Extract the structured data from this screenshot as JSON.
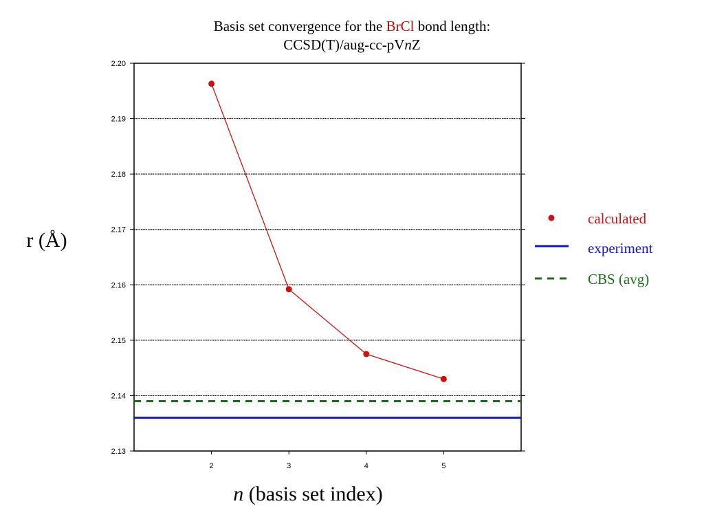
{
  "title": {
    "prefix": "Basis set convergence for the ",
    "molecule": "BrCl",
    "suffix": " bond length:",
    "line2_a": "CCSD(T)/aug-cc-pV",
    "line2_n": "n",
    "line2_b": "Z"
  },
  "axes": {
    "ylabel": "r (Å)",
    "xlabel_italic": "n",
    "xlabel_rest": " (basis set index)"
  },
  "legend": {
    "calculated": "calculated",
    "experiment": "experiment",
    "cbs": "CBS (avg)"
  },
  "colors": {
    "calculated": "#cc1111",
    "experiment": "#1515c0",
    "cbs": "#1a6e1a",
    "title_highlight": "#b01010",
    "grid": "#000000"
  },
  "chart_data": {
    "type": "line",
    "title": "Basis set convergence for the BrCl bond length: CCSD(T)/aug-cc-pVnZ",
    "xlabel": "n (basis set index)",
    "ylabel": "r (Å)",
    "xlim": [
      1,
      6
    ],
    "ylim": [
      2.13,
      2.2
    ],
    "xticks": [
      "2",
      "3",
      "4",
      "5"
    ],
    "yticks": [
      "2.13",
      "2.14",
      "2.15",
      "2.16",
      "2.17",
      "2.18",
      "2.19",
      "2.20"
    ],
    "grid": "horizontal",
    "legend_position": "right",
    "series": [
      {
        "name": "calculated",
        "type": "line",
        "x": [
          2,
          3,
          4,
          5
        ],
        "values": [
          2.1963,
          2.1592,
          2.1475,
          2.143
        ]
      }
    ],
    "reference_lines": [
      {
        "name": "experiment",
        "y": 2.136,
        "style": "solid"
      },
      {
        "name": "CBS (avg)",
        "y": 2.139,
        "style": "dashed"
      }
    ]
  }
}
